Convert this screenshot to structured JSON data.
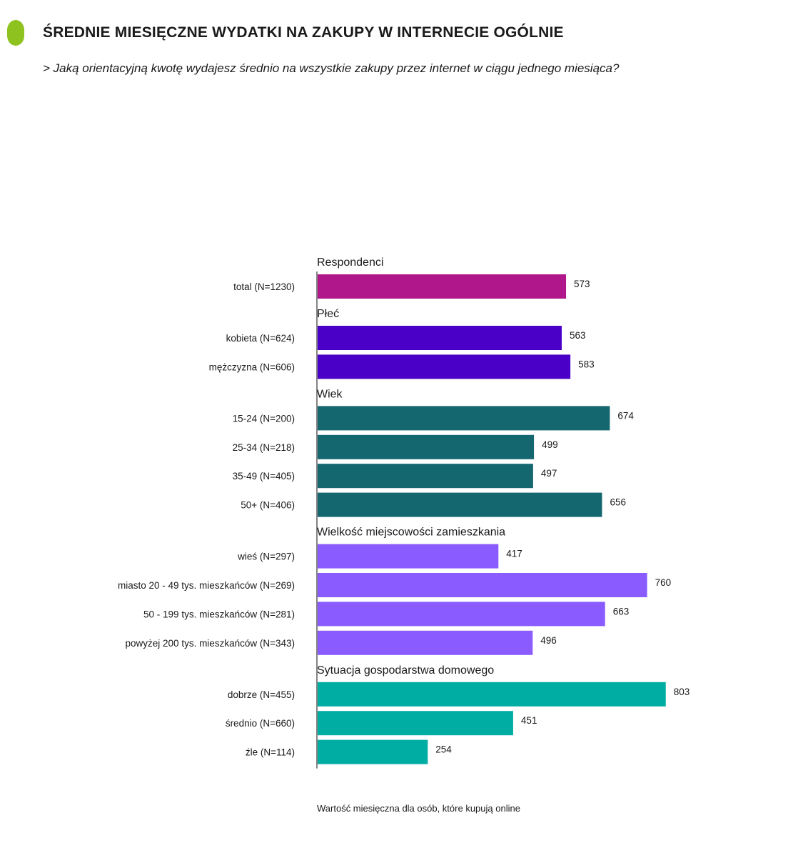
{
  "header": {
    "title": "ŚREDNIE MIESIĘCZNE WYDATKI NA ZAKUPY W INTERNECIE OGÓLNIE",
    "subtitle": "> Jaką orientacyjną kwotę wydajesz średnio na wszystkie zakupy przez internet w ciągu jednego miesiąca?",
    "marker_color": "#8DC21F"
  },
  "footnote": "Wartość miesięczna dla osób, które kupują online",
  "chart_data": {
    "type": "bar",
    "orientation": "horizontal",
    "xlim": [
      0,
      803
    ],
    "grid": false,
    "groups": [
      {
        "name": "Respondenci",
        "color": "#B0178A",
        "bars": [
          {
            "label": "total (N=1230)",
            "value": 573
          }
        ]
      },
      {
        "name": "Płeć",
        "color": "#4B00C8",
        "bars": [
          {
            "label": "kobieta (N=624)",
            "value": 563
          },
          {
            "label": "mężczyzna (N=606)",
            "value": 583
          }
        ]
      },
      {
        "name": "Wiek",
        "color": "#14666F",
        "bars": [
          {
            "label": "15-24 (N=200)",
            "value": 674
          },
          {
            "label": "25-34 (N=218)",
            "value": 499
          },
          {
            "label": "35-49 (N=405)",
            "value": 497
          },
          {
            "label": "50+ (N=406)",
            "value": 656
          }
        ]
      },
      {
        "name": "Wielkość miejscowości zamieszkania",
        "color": "#8A5CFF",
        "bars": [
          {
            "label": "wieś (N=297)",
            "value": 417
          },
          {
            "label": "miasto 20 - 49 tys. mieszkańców (N=269)",
            "value": 760
          },
          {
            "label": "50 - 199 tys. mieszkańców (N=281)",
            "value": 663
          },
          {
            "label": "powyżej 200 tys. mieszkańców (N=343)",
            "value": 496
          }
        ]
      },
      {
        "name": "Sytuacja gospodarstwa domowego",
        "color": "#00ADA3",
        "bars": [
          {
            "label": "dobrze (N=455)",
            "value": 803
          },
          {
            "label": "średnio (N=660)",
            "value": 451
          },
          {
            "label": "źle (N=114)",
            "value": 254
          }
        ]
      }
    ]
  }
}
